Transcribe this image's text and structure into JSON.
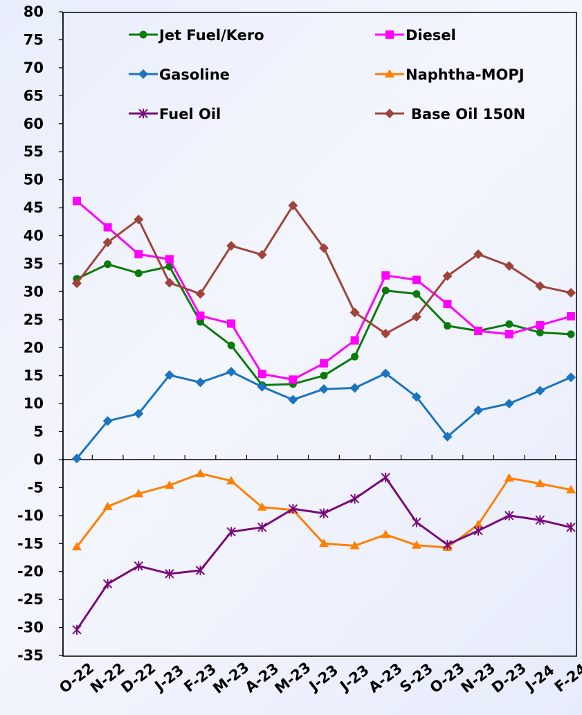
{
  "chart_data": {
    "type": "line",
    "categories": [
      "O-22",
      "N-22",
      "D-22",
      "J-23",
      "F-23",
      "M-23",
      "A-23",
      "M-23",
      "J-23",
      "J-23",
      "A-23",
      "S-23",
      "O-23",
      "N-23",
      "D-23",
      "J-24",
      "F-24"
    ],
    "ylim": [
      -35,
      80
    ],
    "ytick_step": 5,
    "grid": false,
    "legend_placement": "top",
    "series": [
      {
        "name": "Jet Fuel/Kero",
        "color": "#0a7a0a",
        "marker": "circle",
        "values": [
          32.3,
          34.9,
          33.3,
          34.5,
          24.6,
          20.4,
          13.3,
          13.5,
          15.0,
          18.4,
          30.2,
          29.6,
          23.9,
          23.0,
          24.2,
          22.7,
          22.4
        ]
      },
      {
        "name": "Diesel",
        "color": "#ff00ff",
        "marker": "square",
        "values": [
          46.2,
          41.5,
          36.7,
          35.8,
          25.7,
          24.3,
          15.3,
          14.3,
          17.2,
          21.3,
          32.9,
          32.1,
          27.8,
          23.0,
          22.4,
          24.0,
          25.6
        ]
      },
      {
        "name": "Gasoline",
        "color": "#1a74c0",
        "marker": "diamond",
        "values": [
          0.2,
          6.9,
          8.2,
          15.1,
          13.8,
          15.7,
          13.0,
          10.7,
          12.6,
          12.8,
          15.4,
          11.2,
          4.1,
          8.8,
          10.0,
          12.3,
          14.7
        ]
      },
      {
        "name": "Naphtha-MOPJ",
        "color": "#ff7f00",
        "marker": "triangle",
        "values": [
          -15.6,
          -8.4,
          -6.1,
          -4.6,
          -2.5,
          -3.8,
          -8.5,
          -9.0,
          -15.0,
          -15.4,
          -13.4,
          -15.3,
          -15.7,
          -11.6,
          -3.3,
          -4.3,
          -5.4
        ]
      },
      {
        "name": "Fuel Oil",
        "color": "#7a0a7a",
        "marker": "star",
        "values": [
          -30.4,
          -22.2,
          -19.0,
          -20.4,
          -19.8,
          -12.9,
          -12.1,
          -8.8,
          -9.6,
          -7.0,
          -3.2,
          -11.2,
          -15.2,
          -12.7,
          -10.0,
          -10.8,
          -12.1
        ]
      },
      {
        "name": "Base Oil 150N",
        "color": "#a0443a",
        "marker": "diamond",
        "values": [
          31.5,
          38.8,
          42.9,
          31.6,
          29.6,
          38.2,
          36.6,
          45.4,
          37.8,
          26.3,
          22.5,
          25.5,
          32.8,
          36.7,
          34.6,
          31.0,
          29.8
        ]
      }
    ]
  }
}
